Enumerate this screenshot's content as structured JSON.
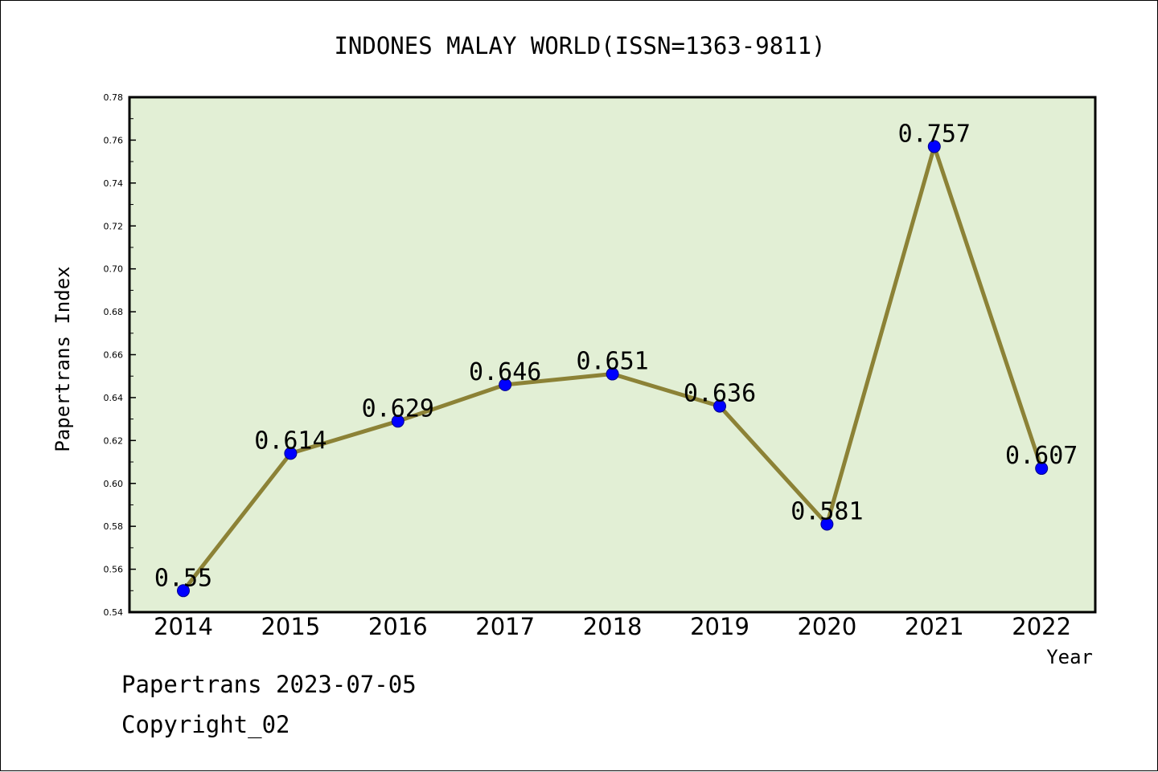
{
  "chart_data": {
    "type": "line",
    "title": "INDONES MALAY WORLD(ISSN=1363-9811)",
    "xlabel": "Year",
    "ylabel": "Papertrans Index",
    "categories": [
      "2014",
      "2015",
      "2016",
      "2017",
      "2018",
      "2019",
      "2020",
      "2021",
      "2022"
    ],
    "values": [
      0.55,
      0.614,
      0.629,
      0.646,
      0.651,
      0.636,
      0.581,
      0.757,
      0.607
    ],
    "data_labels": [
      "0.55",
      "0.614",
      "0.629",
      "0.646",
      "0.651",
      "0.636",
      "0.581",
      "0.757",
      "0.607"
    ],
    "ylim": [
      0.54,
      0.78
    ],
    "yticks": [
      "0.54",
      "0.56",
      "0.58",
      "0.60",
      "0.62",
      "0.64",
      "0.66",
      "0.68",
      "0.70",
      "0.72",
      "0.74",
      "0.76",
      "0.78"
    ],
    "grid": false,
    "legend": "none",
    "colors": {
      "plot_background": "#e2efd5",
      "line": "#8c8236",
      "marker": "#0000ff"
    }
  },
  "footer": {
    "line1": "Papertrans 2023-07-05",
    "line2": "Copyright_02"
  }
}
